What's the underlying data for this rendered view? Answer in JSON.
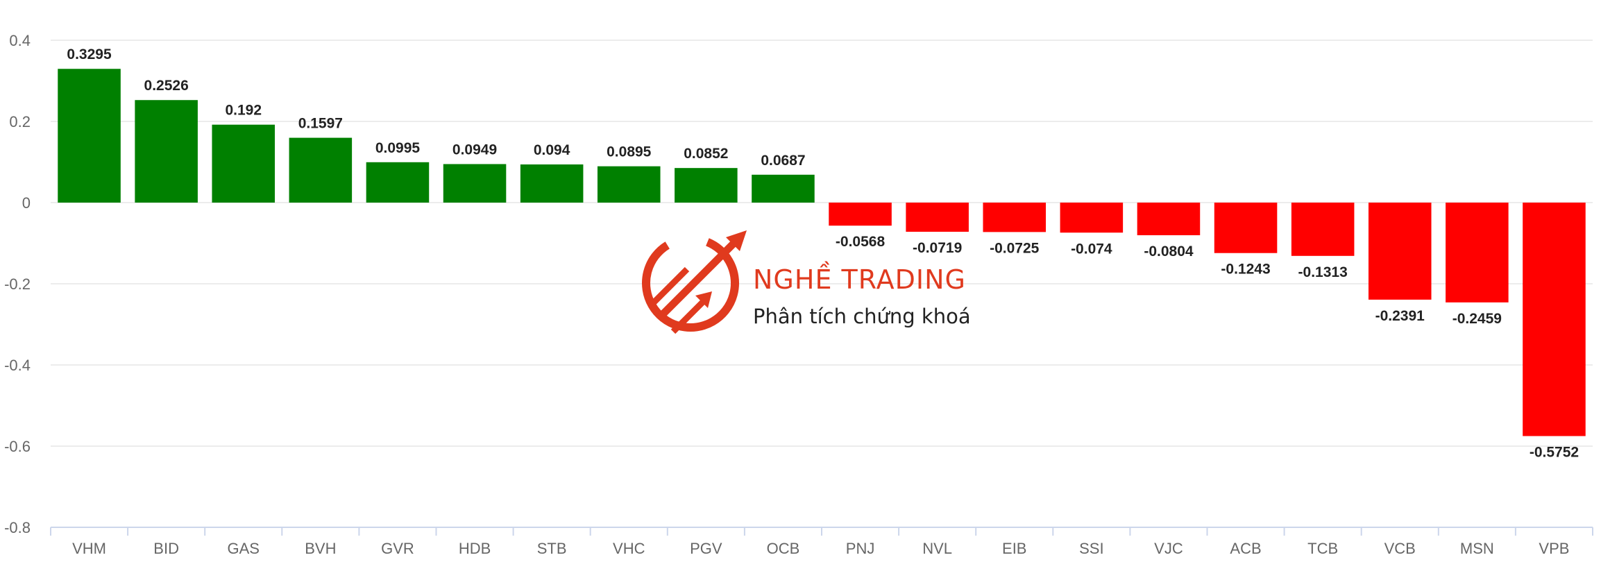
{
  "chart_data": {
    "type": "bar",
    "categories": [
      "VHM",
      "BID",
      "GAS",
      "BVH",
      "GVR",
      "HDB",
      "STB",
      "VHC",
      "PGV",
      "OCB",
      "PNJ",
      "NVL",
      "EIB",
      "SSI",
      "VJC",
      "ACB",
      "TCB",
      "VCB",
      "MSN",
      "VPB"
    ],
    "values": [
      0.3295,
      0.2526,
      0.192,
      0.1597,
      0.0995,
      0.0949,
      0.094,
      0.0895,
      0.0852,
      0.0687,
      -0.0568,
      -0.0719,
      -0.0725,
      -0.074,
      -0.0804,
      -0.1243,
      -0.1313,
      -0.2391,
      -0.2459,
      -0.5752
    ],
    "value_labels": [
      "0.3295",
      "0.2526",
      "0.192",
      "0.1597",
      "0.0995",
      "0.0949",
      "0.094",
      "0.0895",
      "0.0852",
      "0.0687",
      "-0.0568",
      "-0.0719",
      "-0.0725",
      "-0.074",
      "-0.0804",
      "-0.1243",
      "-0.1313",
      "-0.2391",
      "-0.2459",
      "-0.5752"
    ],
    "yticks": [
      "0.4",
      "0.2",
      "0",
      "-0.2",
      "-0.4",
      "-0.6",
      "-0.8"
    ],
    "ylim": [
      -0.8,
      0.4
    ],
    "grid": true,
    "colors": {
      "positive": "#008000",
      "negative": "#ff0000",
      "grid": "#e6e6e6",
      "axis": "#ccd6eb"
    }
  },
  "watermark": {
    "title": "NGHỀ TRADING",
    "subtitle": "Phân tích chứng khoán",
    "icon": "trading-logo-icon",
    "color": "#e03a1e"
  }
}
